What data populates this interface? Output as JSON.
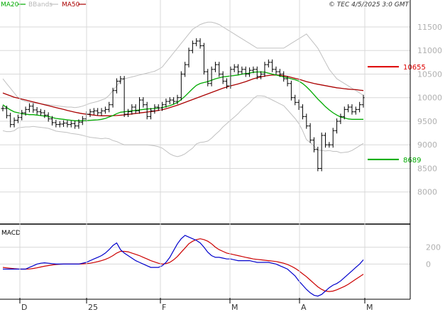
{
  "header": {
    "ma20_label": "MA20",
    "bbands_label": "BBands",
    "ma50_label": "MA50",
    "timestamp": "© TEC 4/5/2025 3:0 GMT"
  },
  "colors": {
    "ma20": "#00aa00",
    "bbands": "#c0c0c0",
    "ma50": "#aa0000",
    "price": "#000000",
    "macd": "#0000cc",
    "signal": "#cc0000",
    "grid": "#d8d8d8",
    "level_red": "#dd0000",
    "level_green": "#00aa00",
    "axis_text": "#b0b0b0",
    "label_text": "#333333"
  },
  "chart_data": [
    {
      "type": "line",
      "title": "",
      "x_tick_labels": [
        "D",
        "25",
        "F",
        "M",
        "A",
        "M"
      ],
      "y_tick_labels": [
        "8000",
        "8500",
        "9000",
        "9500",
        "10000",
        "10500",
        "11000",
        "11500"
      ],
      "ylim": [
        7500,
        11800
      ],
      "grid": true,
      "levels": [
        {
          "name": "resistance",
          "value": 10655,
          "label": "10655"
        },
        {
          "name": "support",
          "value": 8689,
          "label": "8689"
        }
      ],
      "series": [
        {
          "name": "price",
          "style": "ohlc-bars",
          "values": [
            9770,
            9620,
            9430,
            9520,
            9580,
            9680,
            9750,
            9820,
            9740,
            9700,
            9680,
            9630,
            9550,
            9470,
            9430,
            9440,
            9460,
            9430,
            9450,
            9400,
            9480,
            9550,
            9650,
            9700,
            9720,
            9680,
            9720,
            9750,
            9850,
            10150,
            10350,
            10400,
            9650,
            9700,
            9800,
            9720,
            9950,
            9850,
            9600,
            9720,
            9800,
            9780,
            9850,
            9920,
            9950,
            9920,
            10000,
            10500,
            10700,
            11000,
            11150,
            11200,
            11100,
            10550,
            10300,
            10600,
            10700,
            10500,
            10350,
            10250,
            10600,
            10650,
            10550,
            10600,
            10500,
            10580,
            10600,
            10450,
            10500,
            10700,
            10750,
            10600,
            10550,
            10500,
            10400,
            10300,
            10000,
            9900,
            9800,
            9600,
            9400,
            9100,
            8900,
            8500,
            9200,
            9000,
            9000,
            9300,
            9500,
            9600,
            9750,
            9800,
            9700,
            9750,
            9850,
            10000
          ]
        },
        {
          "name": "MA20",
          "values": [
            9850,
            9790,
            9740,
            9700,
            9680,
            9660,
            9650,
            9640,
            9640,
            9630,
            9620,
            9610,
            9600,
            9580,
            9560,
            9550,
            9540,
            9530,
            9520,
            9510,
            9510,
            9510,
            9515,
            9520,
            9525,
            9530,
            9540,
            9560,
            9590,
            9620,
            9660,
            9690,
            9700,
            9710,
            9720,
            9730,
            9740,
            9750,
            9760,
            9765,
            9770,
            9780,
            9790,
            9810,
            9830,
            9860,
            9900,
            9960,
            10030,
            10110,
            10190,
            10260,
            10300,
            10320,
            10340,
            10370,
            10400,
            10420,
            10440,
            10450,
            10460,
            10470,
            10480,
            10500,
            10510,
            10520,
            10540,
            10545,
            10545,
            10540,
            10520,
            10500,
            10480,
            10460,
            10440,
            10420,
            10400,
            10380,
            10350,
            10300,
            10230,
            10150,
            10060,
            9970,
            9890,
            9810,
            9740,
            9680,
            9630,
            9590,
            9570,
            9550,
            9540,
            9540,
            9540,
            9540
          ]
        },
        {
          "name": "MA50",
          "values": [
            10100,
            10070,
            10040,
            10010,
            9990,
            9970,
            9950,
            9930,
            9910,
            9890,
            9870,
            9850,
            9830,
            9810,
            9790,
            9770,
            9750,
            9730,
            9710,
            9690,
            9675,
            9660,
            9650,
            9640,
            9630,
            9620,
            9615,
            9615,
            9615,
            9618,
            9622,
            9628,
            9635,
            9645,
            9655,
            9665,
            9675,
            9685,
            9695,
            9705,
            9715,
            9730,
            9745,
            9765,
            9790,
            9815,
            9840,
            9870,
            9900,
            9930,
            9960,
            9990,
            10020,
            10050,
            10080,
            10110,
            10140,
            10170,
            10200,
            10225,
            10250,
            10270,
            10290,
            10315,
            10340,
            10370,
            10400,
            10420,
            10440,
            10460,
            10470,
            10480,
            10480,
            10475,
            10465,
            10450,
            10430,
            10410,
            10390,
            10365,
            10340,
            10320,
            10300,
            10285,
            10270,
            10255,
            10240,
            10225,
            10210,
            10200,
            10190,
            10180,
            10175,
            10170,
            10160,
            10150
          ]
        },
        {
          "name": "BBands upper",
          "values": [
            10400,
            10300,
            10200,
            10100,
            10000,
            9950,
            9920,
            9900,
            9890,
            9880,
            9870,
            9860,
            9850,
            9840,
            9830,
            9820,
            9810,
            9800,
            9800,
            9790,
            9800,
            9820,
            9850,
            9880,
            9900,
            9920,
            9950,
            9980,
            10050,
            10150,
            10250,
            10350,
            10400,
            10420,
            10440,
            10460,
            10480,
            10500,
            10520,
            10540,
            10560,
            10600,
            10650,
            10750,
            10850,
            10950,
            11050,
            11150,
            11250,
            11350,
            11450,
            11500,
            11550,
            11580,
            11600,
            11600,
            11580,
            11550,
            11500,
            11450,
            11400,
            11350,
            11300,
            11250,
            11200,
            11150,
            11100,
            11050,
            11050,
            11050,
            11050,
            11050,
            11050,
            11050,
            11050,
            11100,
            11150,
            11200,
            11250,
            11300,
            11350,
            11250,
            11150,
            11050,
            10900,
            10750,
            10600,
            10500,
            10400,
            10350,
            10300,
            10250,
            10200,
            10150,
            10100,
            10050
          ]
        },
        {
          "name": "BBands lower",
          "values": [
            9300,
            9280,
            9280,
            9300,
            9360,
            9370,
            9380,
            9380,
            9390,
            9380,
            9370,
            9360,
            9350,
            9320,
            9290,
            9280,
            9270,
            9260,
            9240,
            9230,
            9220,
            9200,
            9180,
            9160,
            9150,
            9140,
            9130,
            9140,
            9130,
            9090,
            9070,
            9030,
            9000,
            9000,
            9000,
            9000,
            9000,
            9000,
            9000,
            8990,
            8980,
            8960,
            8930,
            8870,
            8810,
            8770,
            8750,
            8770,
            8810,
            8870,
            8930,
            9020,
            9050,
            9060,
            9080,
            9140,
            9220,
            9290,
            9380,
            9450,
            9520,
            9590,
            9660,
            9750,
            9820,
            9890,
            9980,
            10040,
            10040,
            10030,
            9990,
            9950,
            9910,
            9870,
            9830,
            9740,
            9650,
            9560,
            9450,
            9300,
            9110,
            9050,
            8970,
            8890,
            8880,
            8870,
            8880,
            8860,
            8860,
            8830,
            8840,
            8850,
            8880,
            8930,
            8980,
            9030
          ]
        }
      ]
    },
    {
      "type": "line",
      "title": "MACD",
      "y_tick_labels": [
        "200",
        "0"
      ],
      "x_tick_labels": [
        "D",
        "25",
        "F",
        "M",
        "A",
        "M"
      ],
      "ylim": [
        -400,
        440
      ],
      "grid": true,
      "series": [
        {
          "name": "MACD",
          "values": [
            -60,
            -60,
            -60,
            -60,
            -60,
            -60,
            -60,
            -40,
            -20,
            0,
            10,
            15,
            10,
            5,
            0,
            0,
            0,
            0,
            0,
            0,
            0,
            10,
            20,
            40,
            60,
            80,
            100,
            130,
            170,
            220,
            250,
            170,
            130,
            100,
            70,
            40,
            20,
            0,
            -20,
            -40,
            -40,
            -40,
            -20,
            20,
            80,
            160,
            240,
            300,
            340,
            320,
            300,
            280,
            250,
            200,
            140,
            100,
            80,
            80,
            70,
            60,
            60,
            50,
            40,
            40,
            40,
            40,
            30,
            20,
            20,
            20,
            20,
            10,
            0,
            -20,
            -40,
            -60,
            -100,
            -140,
            -200,
            -250,
            -300,
            -340,
            -370,
            -380,
            -360,
            -320,
            -280,
            -250,
            -230,
            -200,
            -160,
            -120,
            -80,
            -40,
            0,
            50
          ]
        },
        {
          "name": "Signal",
          "values": [
            -40,
            -45,
            -50,
            -55,
            -58,
            -60,
            -60,
            -58,
            -52,
            -45,
            -35,
            -25,
            -18,
            -10,
            -5,
            -2,
            0,
            0,
            0,
            0,
            0,
            2,
            5,
            10,
            18,
            28,
            40,
            55,
            75,
            100,
            130,
            150,
            150,
            145,
            130,
            115,
            100,
            80,
            60,
            40,
            25,
            10,
            0,
            5,
            20,
            50,
            90,
            140,
            190,
            240,
            270,
            290,
            300,
            290,
            270,
            240,
            200,
            170,
            150,
            130,
            120,
            110,
            100,
            90,
            80,
            70,
            60,
            55,
            50,
            45,
            40,
            35,
            30,
            20,
            10,
            -5,
            -25,
            -50,
            -80,
            -115,
            -150,
            -190,
            -230,
            -270,
            -300,
            -320,
            -325,
            -320,
            -305,
            -285,
            -265,
            -240,
            -210,
            -180,
            -150,
            -120
          ]
        }
      ]
    }
  ]
}
